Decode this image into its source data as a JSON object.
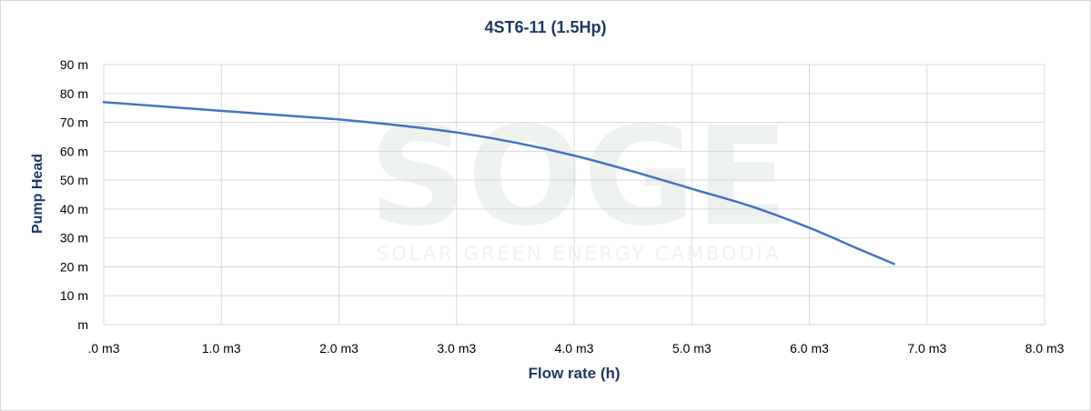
{
  "chart_data": {
    "type": "line",
    "title": "4ST6-11 (1.5Hp)",
    "xlabel": "Flow rate (h)",
    "ylabel": "Pump Head",
    "xlim": [
      0,
      8
    ],
    "ylim": [
      0,
      90
    ],
    "x_ticks": [
      0,
      1,
      2,
      3,
      4,
      5,
      6,
      7,
      8
    ],
    "x_tick_labels": [
      ".0 m3",
      "1.0 m3",
      "2.0 m3",
      "3.0 m3",
      "4.0 m3",
      "5.0 m3",
      "6.0 m3",
      "7.0 m3",
      "8.0 m3"
    ],
    "y_ticks": [
      0,
      10,
      20,
      30,
      40,
      50,
      60,
      70,
      80,
      90
    ],
    "y_tick_labels": [
      "m",
      "10 m",
      "20 m",
      "30 m",
      "40 m",
      "50 m",
      "60 m",
      "70 m",
      "80 m",
      "90 m"
    ],
    "grid": true,
    "legend": "none",
    "series": [
      {
        "color": "#4472c4",
        "x": [
          0,
          0.5,
          1.0,
          1.5,
          2.0,
          2.5,
          3.0,
          3.5,
          4.0,
          4.5,
          5.0,
          5.5,
          6.0,
          6.4,
          6.72
        ],
        "y": [
          77,
          75.5,
          74,
          72.5,
          71,
          69,
          66.5,
          63,
          58.5,
          53,
          47,
          41,
          33.5,
          26.5,
          21
        ]
      }
    ],
    "watermark": {
      "big": "SOGE",
      "small": "SOLAR GREEN ENERGY CAMBODIA"
    }
  }
}
